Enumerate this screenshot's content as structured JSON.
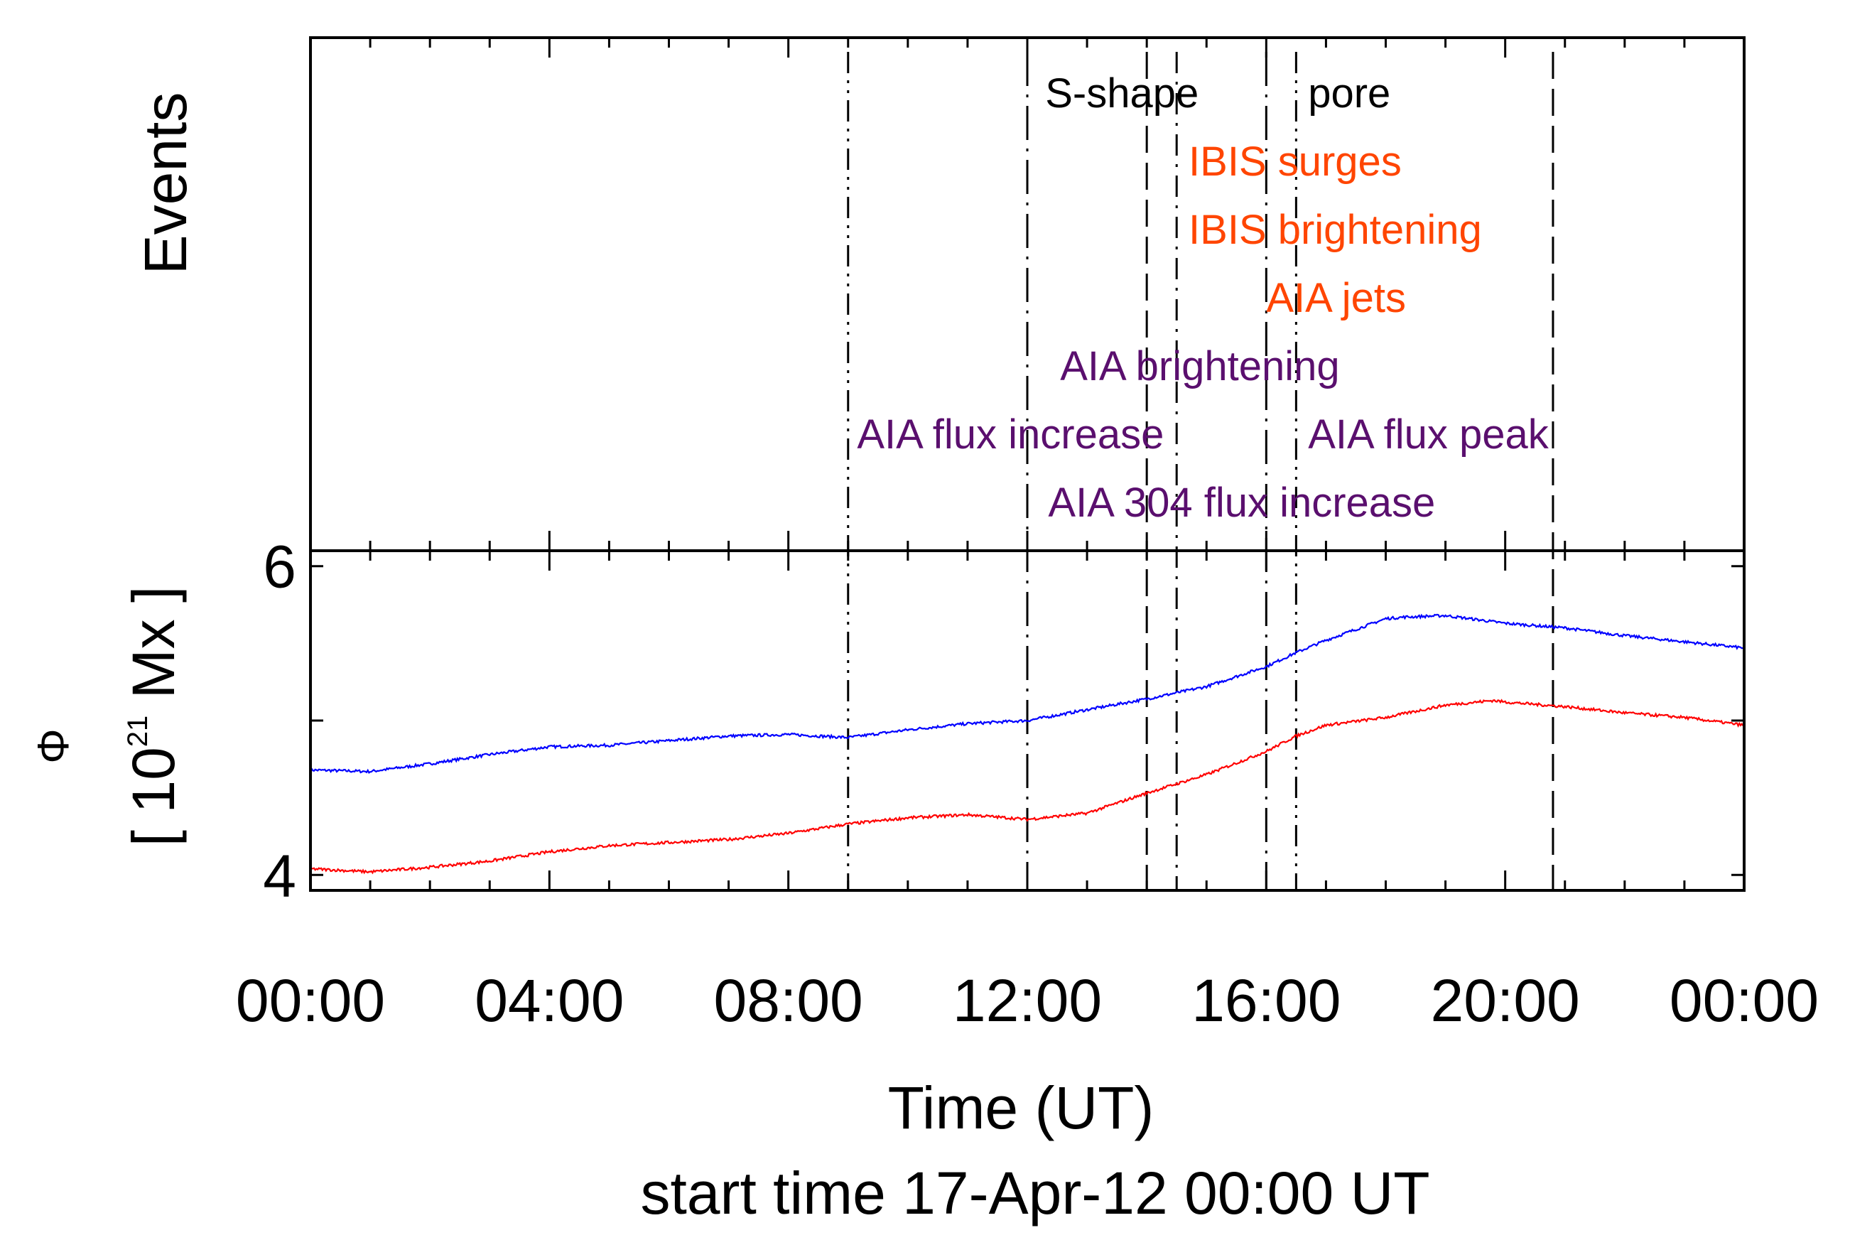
{
  "chart_data": {
    "type": "line",
    "colors": {
      "axes": "#000000",
      "orange": "#ff4500",
      "purple": "#5a0f6e",
      "black": "#000000",
      "blue": "#0000ff",
      "red": "#ff0000"
    },
    "top_panel": {
      "ylabel": "Events",
      "markers": [
        {
          "time": 9.0,
          "style": "dash-dot-dot"
        },
        {
          "time": 12.0,
          "style": "long-dash-dot"
        },
        {
          "time": 14.0,
          "style": "dash"
        },
        {
          "time": 14.5,
          "style": "dash-dot"
        },
        {
          "time": 16.0,
          "style": "long-dash-dot"
        },
        {
          "time": 16.5,
          "style": "dash-dot-dot"
        },
        {
          "time": 20.8,
          "style": "dash"
        }
      ],
      "events": [
        {
          "label": "S-shape",
          "time": 12.3,
          "row": 0,
          "color": "black"
        },
        {
          "label": "pore",
          "time": 16.7,
          "row": 0,
          "color": "black"
        },
        {
          "label": "IBIS surges",
          "time": 14.7,
          "row": 1,
          "color": "orange"
        },
        {
          "label": "IBIS brightening",
          "time": 14.7,
          "row": 2,
          "color": "orange"
        },
        {
          "label": "AIA jets",
          "time": 16.0,
          "row": 3,
          "color": "orange"
        },
        {
          "label": "AIA brightening",
          "time": 12.55,
          "row": 4,
          "color": "purple"
        },
        {
          "label": "AIA flux increase",
          "time": 9.15,
          "row": 5,
          "color": "purple"
        },
        {
          "label": "AIA flux peak",
          "time": 16.7,
          "row": 5,
          "color": "purple"
        },
        {
          "label": "AIA 304 flux increase",
          "time": 12.35,
          "row": 6,
          "color": "purple"
        }
      ]
    },
    "bottom_panel": {
      "ylabel_symbol": "Φ",
      "ylabel_units": [
        "[ 10",
        "21",
        " Mx ]"
      ],
      "ylim": [
        3.9,
        6.1
      ],
      "yticks": [
        4,
        5,
        6
      ],
      "ytick_labels": [
        "4",
        "",
        "6"
      ],
      "series": [
        {
          "name": "blue",
          "color": "blue",
          "points": [
            [
              0.0,
              4.68
            ],
            [
              1.0,
              4.67
            ],
            [
              2.0,
              4.72
            ],
            [
              3.0,
              4.78
            ],
            [
              4.0,
              4.83
            ],
            [
              5.0,
              4.84
            ],
            [
              6.0,
              4.87
            ],
            [
              7.0,
              4.9
            ],
            [
              8.0,
              4.91
            ],
            [
              9.0,
              4.89
            ],
            [
              10.0,
              4.94
            ],
            [
              11.0,
              4.98
            ],
            [
              12.0,
              5.0
            ],
            [
              13.0,
              5.07
            ],
            [
              14.0,
              5.14
            ],
            [
              15.0,
              5.22
            ],
            [
              16.0,
              5.35
            ],
            [
              16.5,
              5.44
            ],
            [
              17.0,
              5.52
            ],
            [
              18.0,
              5.66
            ],
            [
              18.3,
              5.67
            ],
            [
              19.0,
              5.68
            ],
            [
              20.0,
              5.63
            ],
            [
              21.0,
              5.6
            ],
            [
              22.0,
              5.55
            ],
            [
              23.0,
              5.51
            ],
            [
              24.0,
              5.47
            ]
          ]
        },
        {
          "name": "red",
          "color": "red",
          "points": [
            [
              0.0,
              4.04
            ],
            [
              1.0,
              4.02
            ],
            [
              2.0,
              4.05
            ],
            [
              3.0,
              4.09
            ],
            [
              4.0,
              4.15
            ],
            [
              5.0,
              4.19
            ],
            [
              6.0,
              4.21
            ],
            [
              7.0,
              4.23
            ],
            [
              8.0,
              4.27
            ],
            [
              9.0,
              4.33
            ],
            [
              10.0,
              4.37
            ],
            [
              11.0,
              4.39
            ],
            [
              12.0,
              4.36
            ],
            [
              13.0,
              4.4
            ],
            [
              14.0,
              4.53
            ],
            [
              15.0,
              4.65
            ],
            [
              16.0,
              4.8
            ],
            [
              16.5,
              4.9
            ],
            [
              17.0,
              4.97
            ],
            [
              18.0,
              5.02
            ],
            [
              19.0,
              5.1
            ],
            [
              19.8,
              5.13
            ],
            [
              20.0,
              5.12
            ],
            [
              21.0,
              5.09
            ],
            [
              22.0,
              5.05
            ],
            [
              23.0,
              5.02
            ],
            [
              24.0,
              4.97
            ]
          ]
        }
      ]
    },
    "x": {
      "range": [
        0,
        24
      ],
      "ticks": [
        0,
        4,
        8,
        12,
        16,
        20,
        24
      ],
      "tick_labels": [
        "00:00",
        "04:00",
        "08:00",
        "12:00",
        "16:00",
        "20:00",
        "00:00"
      ],
      "xlabel": "Time (UT)",
      "subtitle": "start time 17-Apr-12 00:00 UT"
    }
  }
}
